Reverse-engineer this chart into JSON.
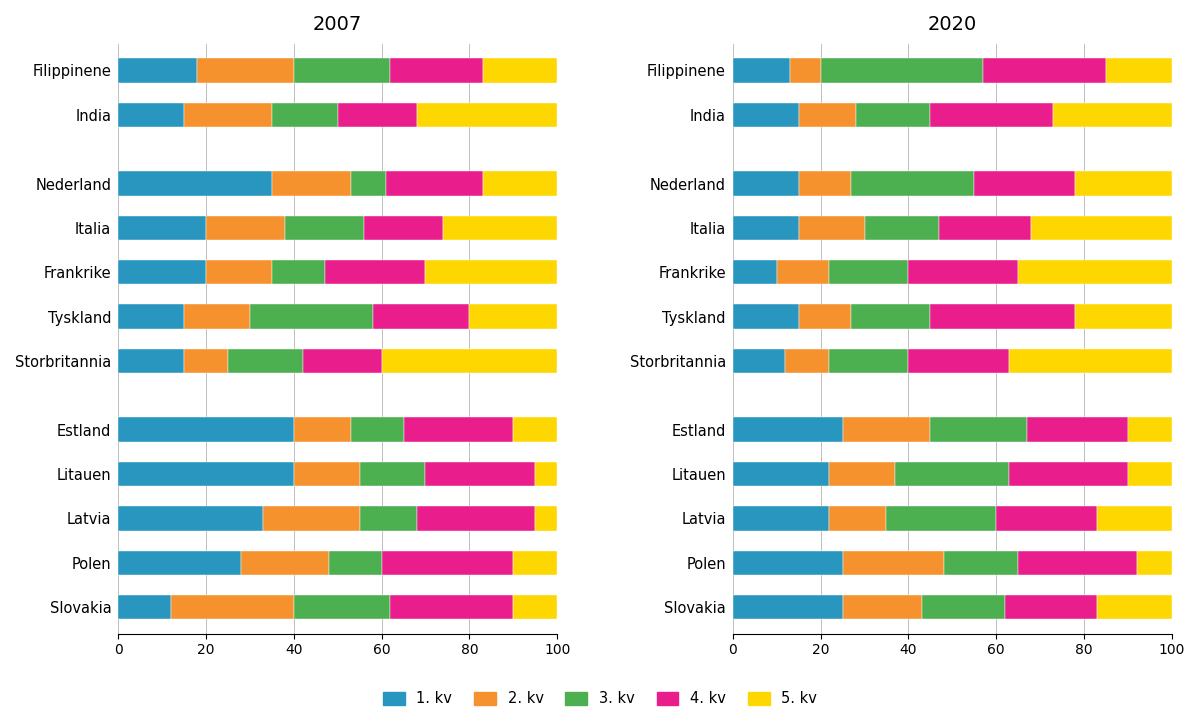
{
  "title_2007": "2007",
  "title_2020": "2020",
  "colors": [
    "#2896BE",
    "#F5922E",
    "#4CAF50",
    "#E91E8C",
    "#FFD700"
  ],
  "legend_labels": [
    "1. kv",
    "2. kv",
    "3. kv",
    "4. kv",
    "5. kv"
  ],
  "countries_display": [
    "Filippinene",
    "India",
    "",
    "Nederland",
    "Italia",
    "Frankrike",
    "Tyskland",
    "Storbritannia",
    "",
    "Estland",
    "Litauen",
    "Latvia",
    "Polen",
    "Slovakia"
  ],
  "data_2007": {
    "Filippinene": [
      18,
      22,
      22,
      21,
      17
    ],
    "India": [
      15,
      20,
      15,
      18,
      32
    ],
    "Nederland": [
      35,
      18,
      8,
      22,
      17
    ],
    "Italia": [
      20,
      18,
      18,
      18,
      26
    ],
    "Frankrike": [
      20,
      15,
      12,
      23,
      30
    ],
    "Tyskland": [
      15,
      15,
      28,
      22,
      20
    ],
    "Storbritannia": [
      15,
      10,
      17,
      18,
      40
    ],
    "Estland": [
      40,
      13,
      12,
      25,
      10
    ],
    "Litauen": [
      40,
      15,
      15,
      25,
      5
    ],
    "Latvia": [
      33,
      22,
      13,
      27,
      5
    ],
    "Polen": [
      28,
      20,
      12,
      30,
      10
    ],
    "Slovakia": [
      12,
      28,
      22,
      28,
      10
    ]
  },
  "data_2020": {
    "Filippinene": [
      13,
      7,
      37,
      28,
      15
    ],
    "India": [
      15,
      13,
      17,
      28,
      27
    ],
    "Nederland": [
      15,
      12,
      28,
      23,
      22
    ],
    "Italia": [
      15,
      15,
      17,
      21,
      32
    ],
    "Frankrike": [
      10,
      12,
      18,
      25,
      35
    ],
    "Tyskland": [
      15,
      12,
      18,
      33,
      22
    ],
    "Storbritannia": [
      12,
      10,
      18,
      23,
      37
    ],
    "Estland": [
      25,
      20,
      22,
      23,
      10
    ],
    "Litauen": [
      22,
      15,
      26,
      27,
      10
    ],
    "Latvia": [
      22,
      13,
      25,
      23,
      17
    ],
    "Polen": [
      25,
      23,
      17,
      27,
      8
    ],
    "Slovakia": [
      25,
      18,
      19,
      21,
      17
    ]
  },
  "xlim": [
    0,
    100
  ],
  "xticks": [
    0,
    20,
    40,
    60,
    80,
    100
  ]
}
